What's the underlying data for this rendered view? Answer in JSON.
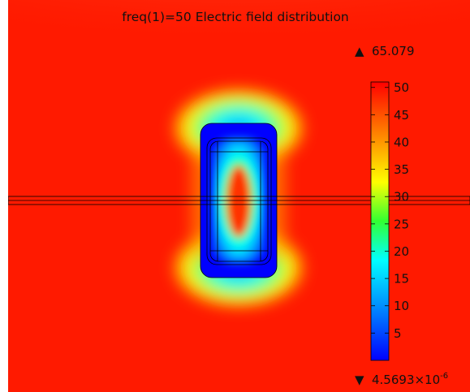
{
  "chart_data": {
    "type": "heatmap",
    "title": "freq(1)=50  Electric field distribution",
    "colormap": "rainbow",
    "colors": {
      "background": "#ff1a00",
      "low": "#0000ff",
      "mid": "#32ff32",
      "high": "#ff0000",
      "frame": "#000000"
    },
    "colorbar": {
      "range": [
        0,
        51
      ],
      "ticks": [
        5,
        10,
        15,
        20,
        25,
        30,
        35,
        40,
        45,
        50
      ],
      "max_label": "65.079",
      "min_label": "4.5693×10",
      "min_exponent": "-6",
      "max_marker": "▲",
      "min_marker": "▼"
    }
  }
}
